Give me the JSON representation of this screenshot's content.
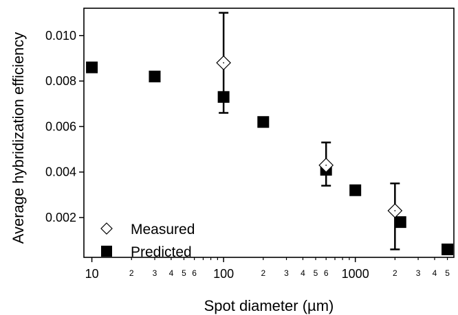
{
  "chart_data": {
    "type": "scatter",
    "title": "",
    "xlabel": "Spot diameter (µm)",
    "ylabel": "Average hybridization efficiency",
    "xscale": "log",
    "xlim": [
      8.7,
      5600
    ],
    "ylim": [
      0.00025,
      0.0112
    ],
    "x_major_ticks": [
      {
        "value": 10,
        "label": "10"
      },
      {
        "value": 100,
        "label": "100"
      },
      {
        "value": 1000,
        "label": "1000"
      }
    ],
    "x_minor_ticks": [
      {
        "value": 20,
        "label": "2"
      },
      {
        "value": 30,
        "label": "3"
      },
      {
        "value": 40,
        "label": "4"
      },
      {
        "value": 50,
        "label": "5"
      },
      {
        "value": 60,
        "label": "6"
      },
      {
        "value": 70,
        "label": ""
      },
      {
        "value": 80,
        "label": ""
      },
      {
        "value": 90,
        "label": ""
      },
      {
        "value": 200,
        "label": "2"
      },
      {
        "value": 300,
        "label": "3"
      },
      {
        "value": 400,
        "label": "4"
      },
      {
        "value": 500,
        "label": "5"
      },
      {
        "value": 600,
        "label": "6"
      },
      {
        "value": 700,
        "label": ""
      },
      {
        "value": 800,
        "label": ""
      },
      {
        "value": 900,
        "label": ""
      },
      {
        "value": 2000,
        "label": "2"
      },
      {
        "value": 3000,
        "label": "3"
      },
      {
        "value": 4000,
        "label": "4"
      },
      {
        "value": 5000,
        "label": "5"
      }
    ],
    "y_ticks": [
      {
        "value": 0.002,
        "label": "0.002"
      },
      {
        "value": 0.004,
        "label": "0.004"
      },
      {
        "value": 0.006,
        "label": "0.006"
      },
      {
        "value": 0.008,
        "label": "0.008"
      },
      {
        "value": 0.01,
        "label": "0.010"
      }
    ],
    "grid": false,
    "legend_position": "bottom-left",
    "series": [
      {
        "name": "Measured",
        "marker": "open-diamond",
        "color": "#000000",
        "points": [
          {
            "x": 100,
            "y": 0.0088,
            "err_low": 0.0066,
            "err_high": 0.011
          },
          {
            "x": 600,
            "y": 0.0043,
            "err_low": 0.0034,
            "err_high": 0.0053
          },
          {
            "x": 2000,
            "y": 0.0023,
            "err_low": 0.0006,
            "err_high": 0.0035
          }
        ]
      },
      {
        "name": "Predicted",
        "marker": "filled-square",
        "color": "#000000",
        "points": [
          {
            "x": 10,
            "y": 0.0086
          },
          {
            "x": 30,
            "y": 0.0082
          },
          {
            "x": 100,
            "y": 0.0073
          },
          {
            "x": 200,
            "y": 0.0062
          },
          {
            "x": 600,
            "y": 0.0041
          },
          {
            "x": 1000,
            "y": 0.0032
          },
          {
            "x": 2200,
            "y": 0.0018
          },
          {
            "x": 5000,
            "y": 0.0006
          }
        ]
      }
    ]
  }
}
